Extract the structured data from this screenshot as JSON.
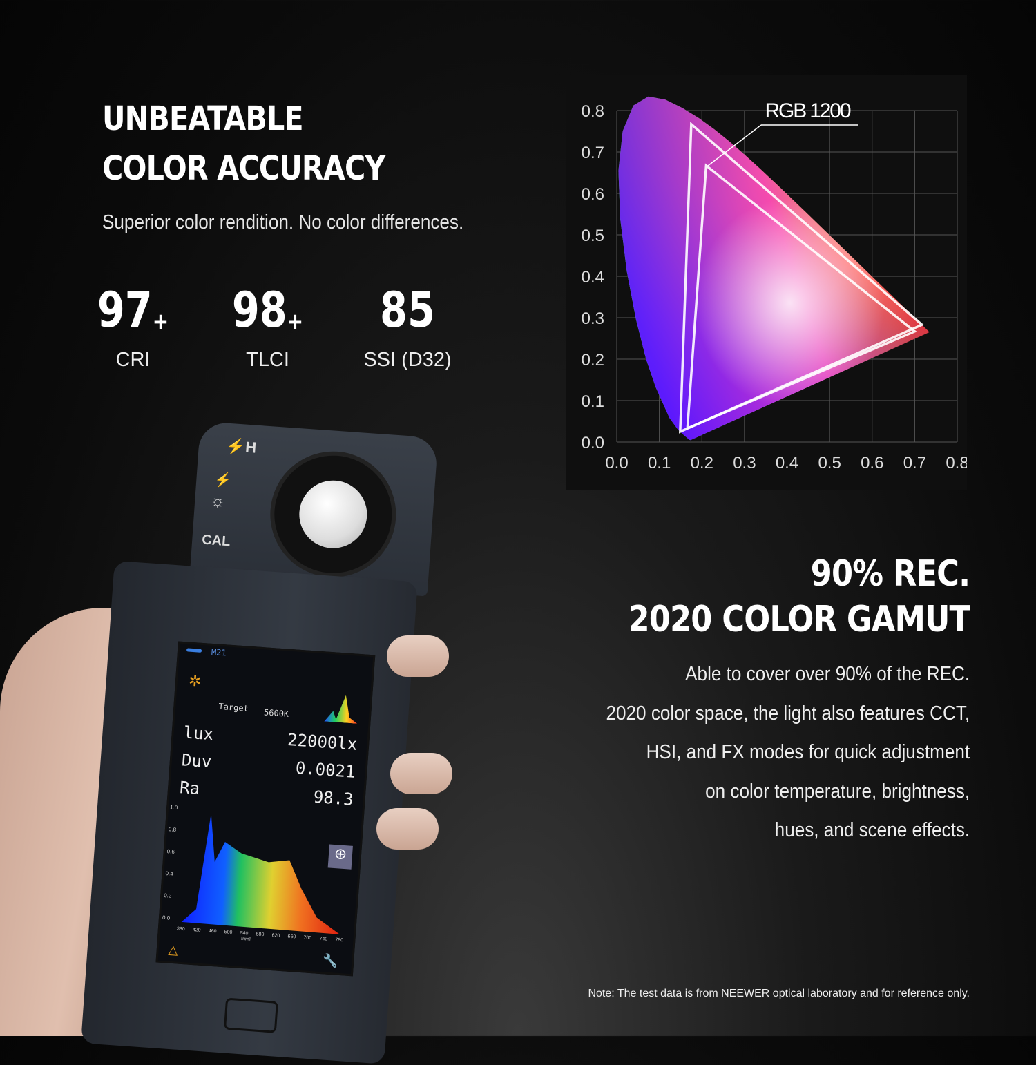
{
  "left": {
    "title_line1": "UNBEATABLE",
    "title_line2": "COLOR ACCURACY",
    "subtitle": "Superior color rendition. No color differences.",
    "stats": [
      {
        "value": "97",
        "suffix": "+",
        "label": "CRI"
      },
      {
        "value": "98",
        "suffix": "+",
        "label": "TLCI"
      },
      {
        "value": "85",
        "suffix": "",
        "label": "SSI (D32)"
      }
    ]
  },
  "right": {
    "title_line1": "90% REC.",
    "title_line2": "2020 COLOR GAMUT",
    "paragraph_lines": [
      "Able to cover over 90% of the REC.",
      "2020 color space, the light also features CCT,",
      "HSI, and FX modes for quick adjustment",
      "on color temperature, brightness,",
      "hues, and scene effects."
    ],
    "note": "Note: The test data is from NEEWER optical laboratory and for reference only."
  },
  "meter": {
    "buttons": [
      "⚡H",
      "⚡",
      "☼",
      "CAL"
    ],
    "mode": "M21",
    "target_label": "Target",
    "target_value": "5600K",
    "readings": [
      {
        "key": "lux",
        "value": "22000lx"
      },
      {
        "key": "Duv",
        "value": "0.0021"
      },
      {
        "key": "Ra",
        "value": "98.3"
      }
    ],
    "spectrum_y_ticks": [
      "1.0",
      "0.8",
      "0.6",
      "0.4",
      "0.2",
      "0.0"
    ],
    "spectrum_x_ticks": [
      "380",
      "420",
      "460",
      "500",
      "540",
      "580",
      "620",
      "660",
      "700",
      "740",
      "780"
    ],
    "spectrum_x_unit": "[nm]"
  },
  "chart_data": {
    "type": "chromaticity",
    "annotation": "RGB 1200",
    "xlim": [
      0,
      0.8
    ],
    "ylim": [
      0,
      0.8
    ],
    "x_ticks": [
      "0.0",
      "0.1",
      "0.2",
      "0.3",
      "0.4",
      "0.5",
      "0.6",
      "0.7",
      "0.8"
    ],
    "y_ticks": [
      "0.0",
      "0.1",
      "0.2",
      "0.3",
      "0.4",
      "0.5",
      "0.6",
      "0.7",
      "0.8"
    ],
    "grid": true,
    "gamut_triangles": [
      [
        [
          0.175,
          0.767
        ],
        [
          0.717,
          0.283
        ],
        [
          0.149,
          0.025
        ]
      ],
      [
        [
          0.21,
          0.667
        ],
        [
          0.7,
          0.267
        ],
        [
          0.166,
          0.033
        ]
      ]
    ]
  }
}
